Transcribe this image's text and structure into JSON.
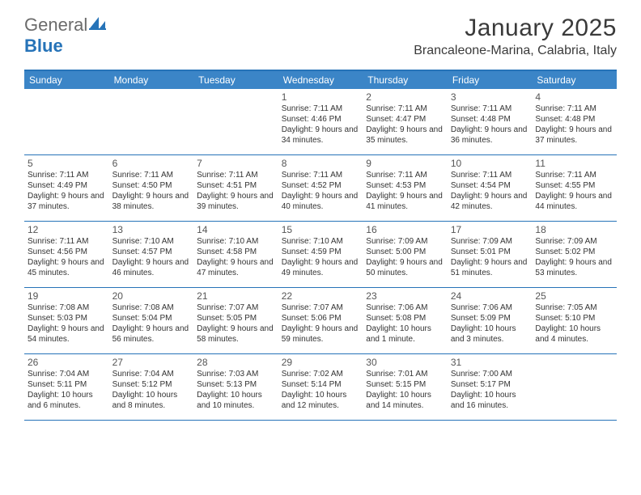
{
  "brand": {
    "first": "General",
    "second": "Blue"
  },
  "title": "January 2025",
  "location": "Brancaleone-Marina, Calabria, Italy",
  "dow": [
    "Sunday",
    "Monday",
    "Tuesday",
    "Wednesday",
    "Thursday",
    "Friday",
    "Saturday"
  ],
  "colors": {
    "header_bg": "#3b85c7",
    "rule": "#2673b8",
    "text": "#333333"
  },
  "weeks": [
    [
      null,
      null,
      null,
      {
        "d": "1",
        "sr": "7:11 AM",
        "ss": "4:46 PM",
        "dl": "9 hours and 34 minutes."
      },
      {
        "d": "2",
        "sr": "7:11 AM",
        "ss": "4:47 PM",
        "dl": "9 hours and 35 minutes."
      },
      {
        "d": "3",
        "sr": "7:11 AM",
        "ss": "4:48 PM",
        "dl": "9 hours and 36 minutes."
      },
      {
        "d": "4",
        "sr": "7:11 AM",
        "ss": "4:48 PM",
        "dl": "9 hours and 37 minutes."
      }
    ],
    [
      {
        "d": "5",
        "sr": "7:11 AM",
        "ss": "4:49 PM",
        "dl": "9 hours and 37 minutes."
      },
      {
        "d": "6",
        "sr": "7:11 AM",
        "ss": "4:50 PM",
        "dl": "9 hours and 38 minutes."
      },
      {
        "d": "7",
        "sr": "7:11 AM",
        "ss": "4:51 PM",
        "dl": "9 hours and 39 minutes."
      },
      {
        "d": "8",
        "sr": "7:11 AM",
        "ss": "4:52 PM",
        "dl": "9 hours and 40 minutes."
      },
      {
        "d": "9",
        "sr": "7:11 AM",
        "ss": "4:53 PM",
        "dl": "9 hours and 41 minutes."
      },
      {
        "d": "10",
        "sr": "7:11 AM",
        "ss": "4:54 PM",
        "dl": "9 hours and 42 minutes."
      },
      {
        "d": "11",
        "sr": "7:11 AM",
        "ss": "4:55 PM",
        "dl": "9 hours and 44 minutes."
      }
    ],
    [
      {
        "d": "12",
        "sr": "7:11 AM",
        "ss": "4:56 PM",
        "dl": "9 hours and 45 minutes."
      },
      {
        "d": "13",
        "sr": "7:10 AM",
        "ss": "4:57 PM",
        "dl": "9 hours and 46 minutes."
      },
      {
        "d": "14",
        "sr": "7:10 AM",
        "ss": "4:58 PM",
        "dl": "9 hours and 47 minutes."
      },
      {
        "d": "15",
        "sr": "7:10 AM",
        "ss": "4:59 PM",
        "dl": "9 hours and 49 minutes."
      },
      {
        "d": "16",
        "sr": "7:09 AM",
        "ss": "5:00 PM",
        "dl": "9 hours and 50 minutes."
      },
      {
        "d": "17",
        "sr": "7:09 AM",
        "ss": "5:01 PM",
        "dl": "9 hours and 51 minutes."
      },
      {
        "d": "18",
        "sr": "7:09 AM",
        "ss": "5:02 PM",
        "dl": "9 hours and 53 minutes."
      }
    ],
    [
      {
        "d": "19",
        "sr": "7:08 AM",
        "ss": "5:03 PM",
        "dl": "9 hours and 54 minutes."
      },
      {
        "d": "20",
        "sr": "7:08 AM",
        "ss": "5:04 PM",
        "dl": "9 hours and 56 minutes."
      },
      {
        "d": "21",
        "sr": "7:07 AM",
        "ss": "5:05 PM",
        "dl": "9 hours and 58 minutes."
      },
      {
        "d": "22",
        "sr": "7:07 AM",
        "ss": "5:06 PM",
        "dl": "9 hours and 59 minutes."
      },
      {
        "d": "23",
        "sr": "7:06 AM",
        "ss": "5:08 PM",
        "dl": "10 hours and 1 minute."
      },
      {
        "d": "24",
        "sr": "7:06 AM",
        "ss": "5:09 PM",
        "dl": "10 hours and 3 minutes."
      },
      {
        "d": "25",
        "sr": "7:05 AM",
        "ss": "5:10 PM",
        "dl": "10 hours and 4 minutes."
      }
    ],
    [
      {
        "d": "26",
        "sr": "7:04 AM",
        "ss": "5:11 PM",
        "dl": "10 hours and 6 minutes."
      },
      {
        "d": "27",
        "sr": "7:04 AM",
        "ss": "5:12 PM",
        "dl": "10 hours and 8 minutes."
      },
      {
        "d": "28",
        "sr": "7:03 AM",
        "ss": "5:13 PM",
        "dl": "10 hours and 10 minutes."
      },
      {
        "d": "29",
        "sr": "7:02 AM",
        "ss": "5:14 PM",
        "dl": "10 hours and 12 minutes."
      },
      {
        "d": "30",
        "sr": "7:01 AM",
        "ss": "5:15 PM",
        "dl": "10 hours and 14 minutes."
      },
      {
        "d": "31",
        "sr": "7:00 AM",
        "ss": "5:17 PM",
        "dl": "10 hours and 16 minutes."
      },
      null
    ]
  ],
  "labels": {
    "sunrise": "Sunrise:",
    "sunset": "Sunset:",
    "daylight": "Daylight:"
  }
}
